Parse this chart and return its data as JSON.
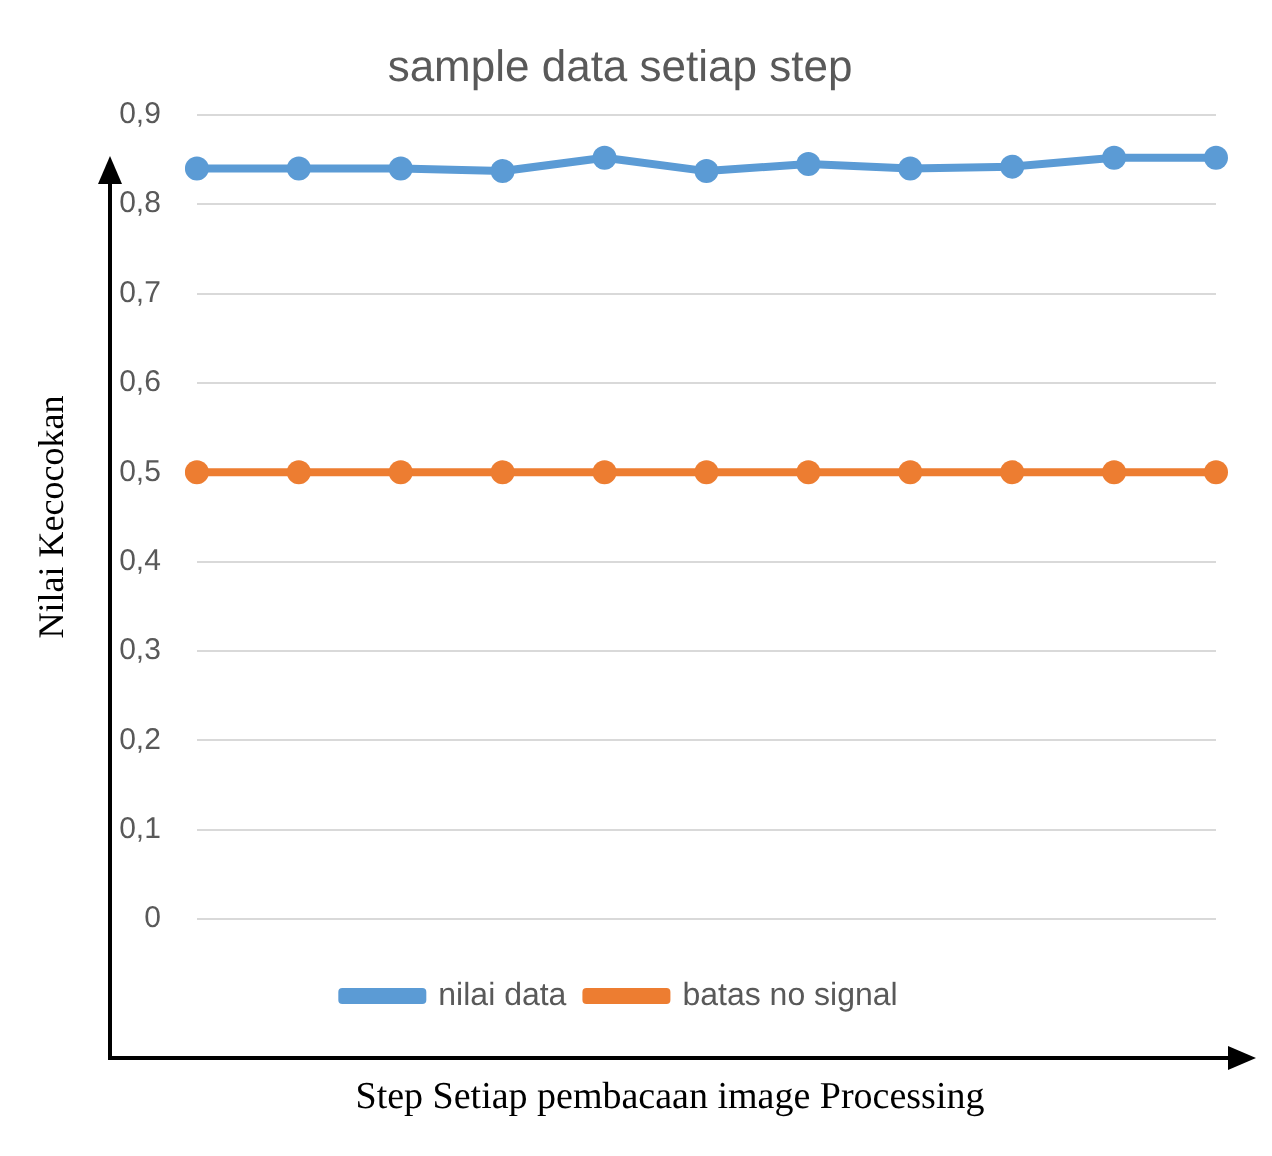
{
  "chart_data": {
    "type": "line",
    "title": "sample data setiap step",
    "xlabel": "Step Setiap pembacaan image Processing",
    "ylabel": "Nilai Kecocokan",
    "categories": [
      null,
      null,
      null,
      null,
      null,
      null,
      null,
      null,
      null,
      null,
      null
    ],
    "series": [
      {
        "name": "nilai data",
        "color": "#5b9bd5",
        "values": [
          0.84,
          0.84,
          0.84,
          0.837,
          0.852,
          0.837,
          0.845,
          0.84,
          0.842,
          0.852,
          0.852
        ]
      },
      {
        "name": "batas no signal",
        "color": "#ed7d31",
        "values": [
          0.5,
          0.5,
          0.5,
          0.5,
          0.5,
          0.5,
          0.5,
          0.5,
          0.5,
          0.5,
          0.5
        ]
      }
    ],
    "ylim": [
      0,
      0.9
    ],
    "yticks": [
      0,
      {
        "value": 0.1,
        "label": "0,1"
      },
      {
        "value": 0.2,
        "label": "0,2"
      },
      {
        "value": 0.3,
        "label": "0,3"
      },
      {
        "value": 0.4,
        "label": "0,4"
      },
      {
        "value": 0.5,
        "label": "0,5"
      },
      {
        "value": 0.6,
        "label": "0,6"
      },
      {
        "value": 0.7,
        "label": "0,7"
      },
      {
        "value": 0.8,
        "label": "0,8"
      },
      {
        "value": 0.9,
        "label": "0,9"
      }
    ],
    "grid": "y",
    "legend": "bottom",
    "marker": "circle",
    "line_style": "solid"
  }
}
